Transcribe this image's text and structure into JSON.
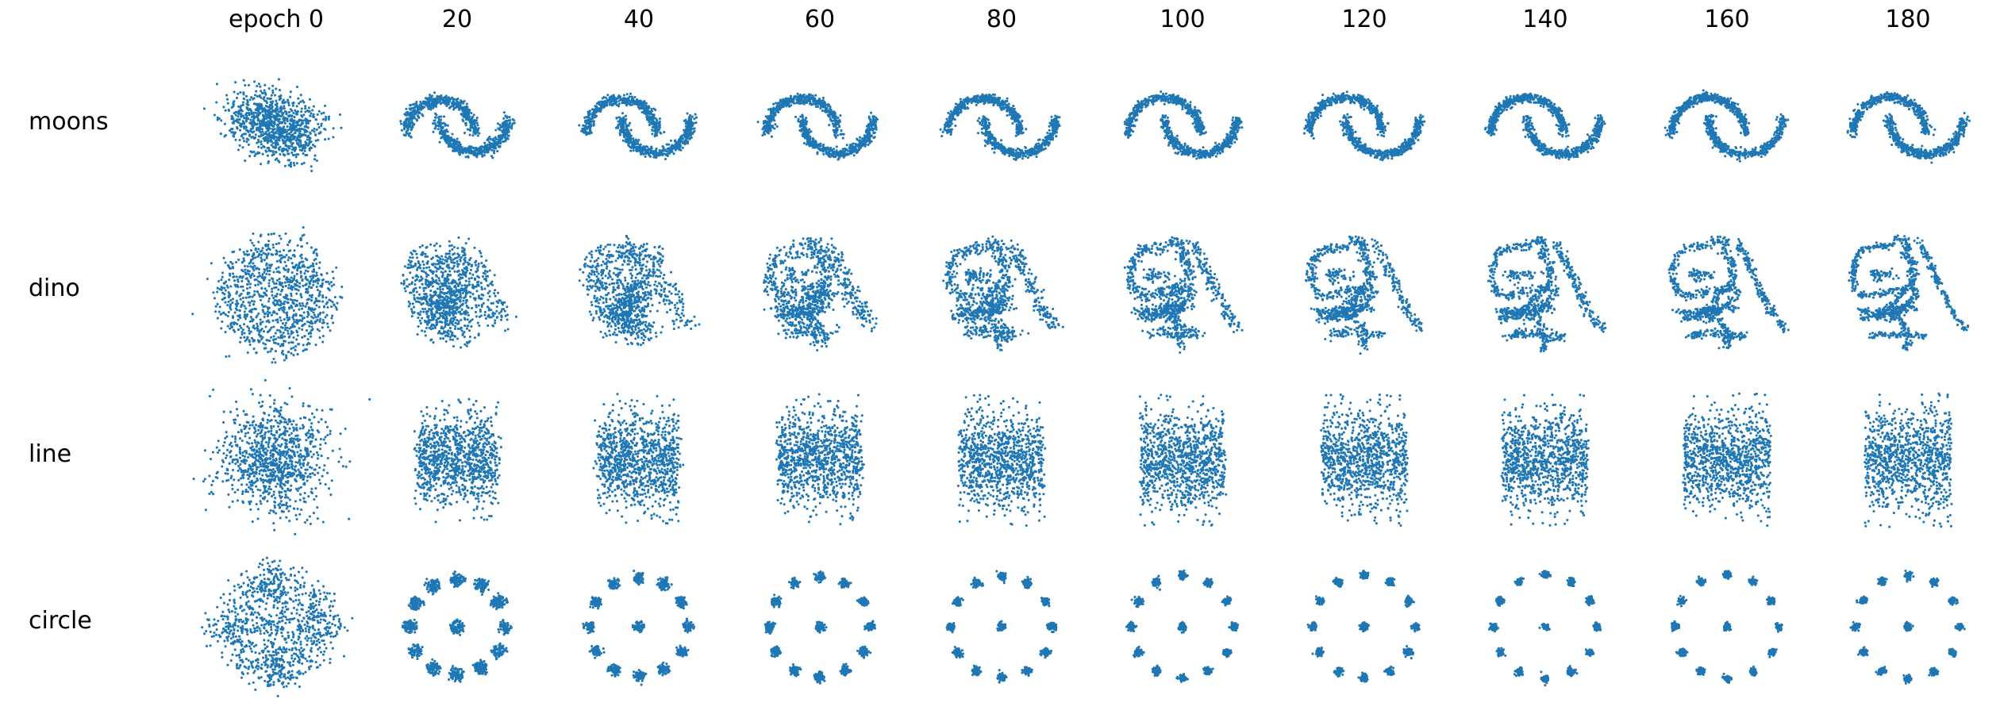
{
  "chart_data": {
    "type": "scatter",
    "title": "",
    "point_color": "#1f77b4",
    "grid": false,
    "axes_visible": false,
    "column_labels": [
      "epoch 0",
      "20",
      "40",
      "60",
      "80",
      "100",
      "120",
      "140",
      "160",
      "180"
    ],
    "epochs": [
      0,
      20,
      40,
      60,
      80,
      100,
      120,
      140,
      160,
      180
    ],
    "row_labels": [
      "moons",
      "dino",
      "line",
      "circle"
    ],
    "datasets": [
      {
        "name": "moons",
        "xlim": [
          -1.6,
          2.6
        ],
        "ylim": [
          -0.9,
          1.3
        ],
        "approx_points_per_panel": 1000,
        "train_progress": [
          0.0,
          0.88,
          0.92,
          0.94,
          0.95,
          0.96,
          0.97,
          0.97,
          0.98,
          0.98
        ]
      },
      {
        "name": "dino",
        "xlim": [
          -1.6,
          1.6
        ],
        "ylim": [
          -1.5,
          1.6
        ],
        "approx_points_per_panel": 1000,
        "train_progress": [
          0.0,
          0.72,
          0.8,
          0.85,
          0.88,
          0.9,
          0.92,
          0.93,
          0.94,
          0.95
        ]
      },
      {
        "name": "line",
        "xlim": [
          -1.6,
          1.6
        ],
        "ylim": [
          -1.5,
          1.5
        ],
        "approx_points_per_panel": 1000,
        "train_progress": [
          0.0,
          0.88,
          0.92,
          0.94,
          0.95,
          0.96,
          0.97,
          0.97,
          0.98,
          0.98
        ]
      },
      {
        "name": "circle",
        "xlim": [
          -1.5,
          1.5
        ],
        "ylim": [
          -1.3,
          1.3
        ],
        "approx_points_per_panel": 1000,
        "train_progress": [
          0.0,
          0.9,
          0.93,
          0.95,
          0.96,
          0.97,
          0.97,
          0.98,
          0.98,
          0.98
        ]
      }
    ]
  }
}
